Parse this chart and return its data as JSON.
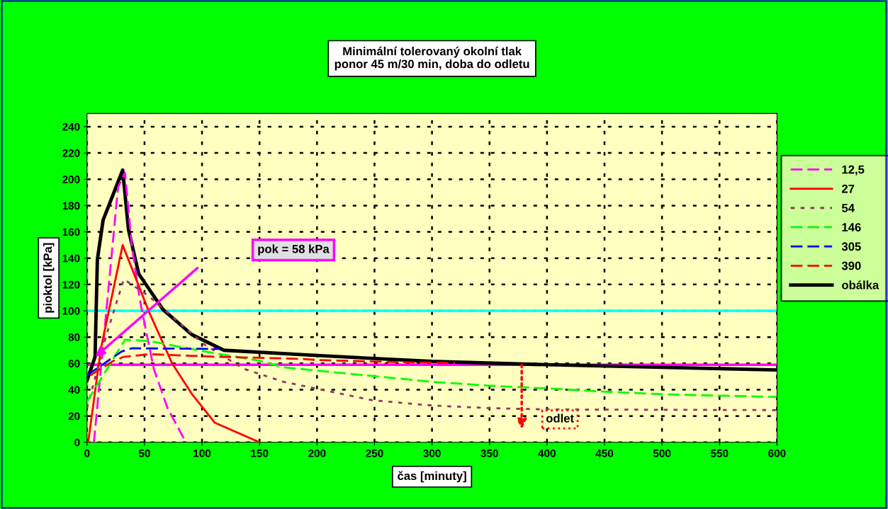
{
  "chart_data": {
    "type": "line",
    "title": "Minimální tolerovaný okolní tlak\nponor 45 m/30 min, doba do odletu",
    "xlabel": "čas [minuty]",
    "ylabel": "pioktol [kPa]",
    "xlim": [
      0,
      600
    ],
    "xticks": [
      0,
      50,
      100,
      150,
      200,
      250,
      300,
      350,
      400,
      450,
      500,
      550,
      600
    ],
    "ylim": [
      0,
      250
    ],
    "yticks": [
      0,
      20,
      40,
      60,
      80,
      100,
      120,
      140,
      160,
      180,
      200,
      220,
      240
    ],
    "grid": true,
    "legend": "top right",
    "marker": "none",
    "series": [
      {
        "name": "12,5",
        "color": "#ff00ff",
        "line_style": "dashed",
        "x": [
          6,
          27,
          33,
          39,
          46,
          58,
          70,
          86
        ],
        "values": [
          0,
          194,
          205,
          149,
          108,
          56,
          26,
          0
        ]
      },
      {
        "name": "27",
        "color": "#ff0000",
        "line_style": "solid",
        "x": [
          1,
          12,
          31,
          54,
          74,
          91,
          111,
          150
        ],
        "values": [
          0,
          71,
          150,
          99,
          60,
          37,
          15,
          0
        ]
      },
      {
        "name": "54",
        "color": "#993366",
        "line_style": "dotted",
        "x": [
          0,
          17,
          32,
          54,
          101,
          136,
          171,
          248,
          300,
          350,
          400,
          600
        ],
        "values": [
          26,
          82,
          124,
          111,
          75,
          56,
          46,
          32,
          28,
          26,
          25,
          24.5
        ]
      },
      {
        "name": "146",
        "color": "#00ff00",
        "line_style": "dashed",
        "x": [
          0,
          33,
          54,
          103,
          150,
          171,
          265,
          300,
          351,
          400,
          451,
          501,
          600
        ],
        "values": [
          31,
          78,
          77,
          69,
          62,
          57,
          49,
          46,
          43,
          41,
          38.5,
          36.5,
          34.5
        ]
      },
      {
        "name": "305",
        "color": "#0000ff",
        "line_style": "dashed",
        "x": [
          0,
          30,
          39,
          115
        ],
        "values": [
          51,
          69,
          71.5,
          71
        ]
      },
      {
        "name": "390",
        "color": "#ff0000",
        "line_style": "dashed",
        "x": [
          3,
          23,
          32,
          54,
          115,
          185,
          202,
          268,
          320
        ],
        "values": [
          51,
          62,
          65,
          67,
          65,
          63.5,
          62.5,
          61,
          60.5
        ]
      },
      {
        "name": "obálka",
        "color": "#000000",
        "line_style": "solid",
        "x": [
          0,
          7,
          9,
          14,
          31,
          36,
          45,
          66,
          91,
          119,
          200,
          300,
          400,
          500,
          600
        ],
        "values": [
          47,
          65,
          139,
          169,
          207,
          162,
          128,
          101,
          82,
          70,
          66,
          61.5,
          59,
          57,
          55
        ]
      }
    ],
    "ref_lines": [
      {
        "axis": "y",
        "value": 100,
        "color": "#00ffff"
      },
      {
        "axis": "y",
        "value": 59,
        "color": "#ff00ff"
      }
    ],
    "annotations": [
      "pok = 58 kPa",
      "odlet"
    ]
  }
}
